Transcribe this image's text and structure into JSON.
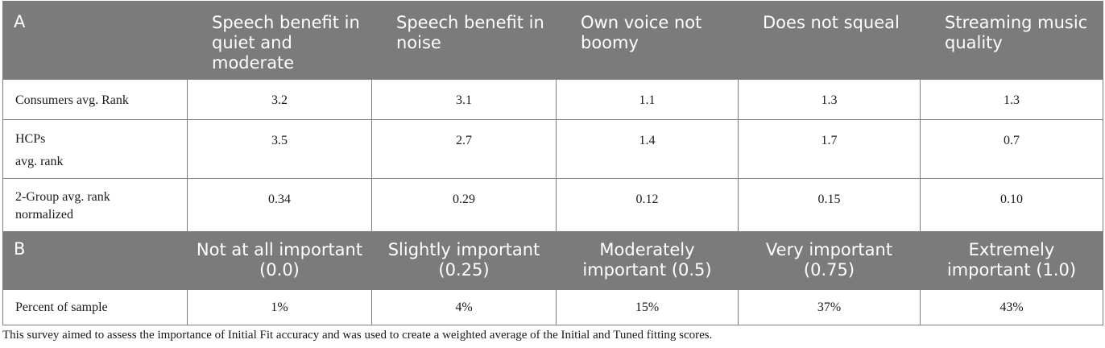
{
  "section_a": {
    "label": "A",
    "columns": [
      "Speech benefit in quiet and moderate",
      "Speech benefit in noise",
      "Own voice not boomy",
      "Does not squeal",
      "Streaming music quality"
    ],
    "rows": [
      {
        "label": "Consumers avg. Rank",
        "values": [
          "3.2",
          "3.1",
          "1.1",
          "1.3",
          "1.3"
        ]
      },
      {
        "label_line1": "HCPs",
        "label_line2": "avg. rank",
        "values": [
          "3.5",
          "2.7",
          "1.4",
          "1.7",
          "0.7"
        ]
      },
      {
        "label_line1": "2-Group avg. rank",
        "label_line2": "normalized",
        "values": [
          "0.34",
          "0.29",
          "0.12",
          "0.15",
          "0.10"
        ]
      }
    ]
  },
  "section_b": {
    "label": "B",
    "columns": [
      "Not at all important (0.0)",
      "Slightly important (0.25)",
      "Moderately important (0.5)",
      "Very important (0.75)",
      "Extremely important (1.0)"
    ],
    "rows": [
      {
        "label": "Percent of sample",
        "values": [
          "1%",
          "4%",
          "15%",
          "37%",
          "43%"
        ]
      }
    ]
  },
  "caption": "This survey aimed to assess the importance of Initial Fit accuracy and was used to create a weighted average of the Initial and Tuned fitting scores."
}
